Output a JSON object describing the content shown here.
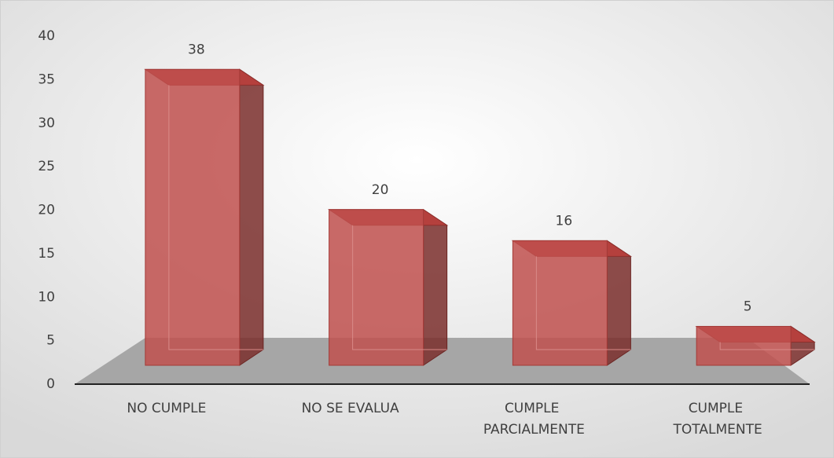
{
  "chart_data": {
    "type": "bar3d",
    "categories": [
      "NO CUMPLE",
      "NO SE EVALUA",
      "CUMPLE PARCIALMENTE",
      "CUMPLE TOTALMENTE"
    ],
    "values": [
      38,
      20,
      16,
      5
    ],
    "color": "#c0504d",
    "ylim": [
      0,
      40
    ],
    "yticks": [
      0,
      5,
      10,
      15,
      20,
      25,
      30,
      35,
      40
    ]
  }
}
